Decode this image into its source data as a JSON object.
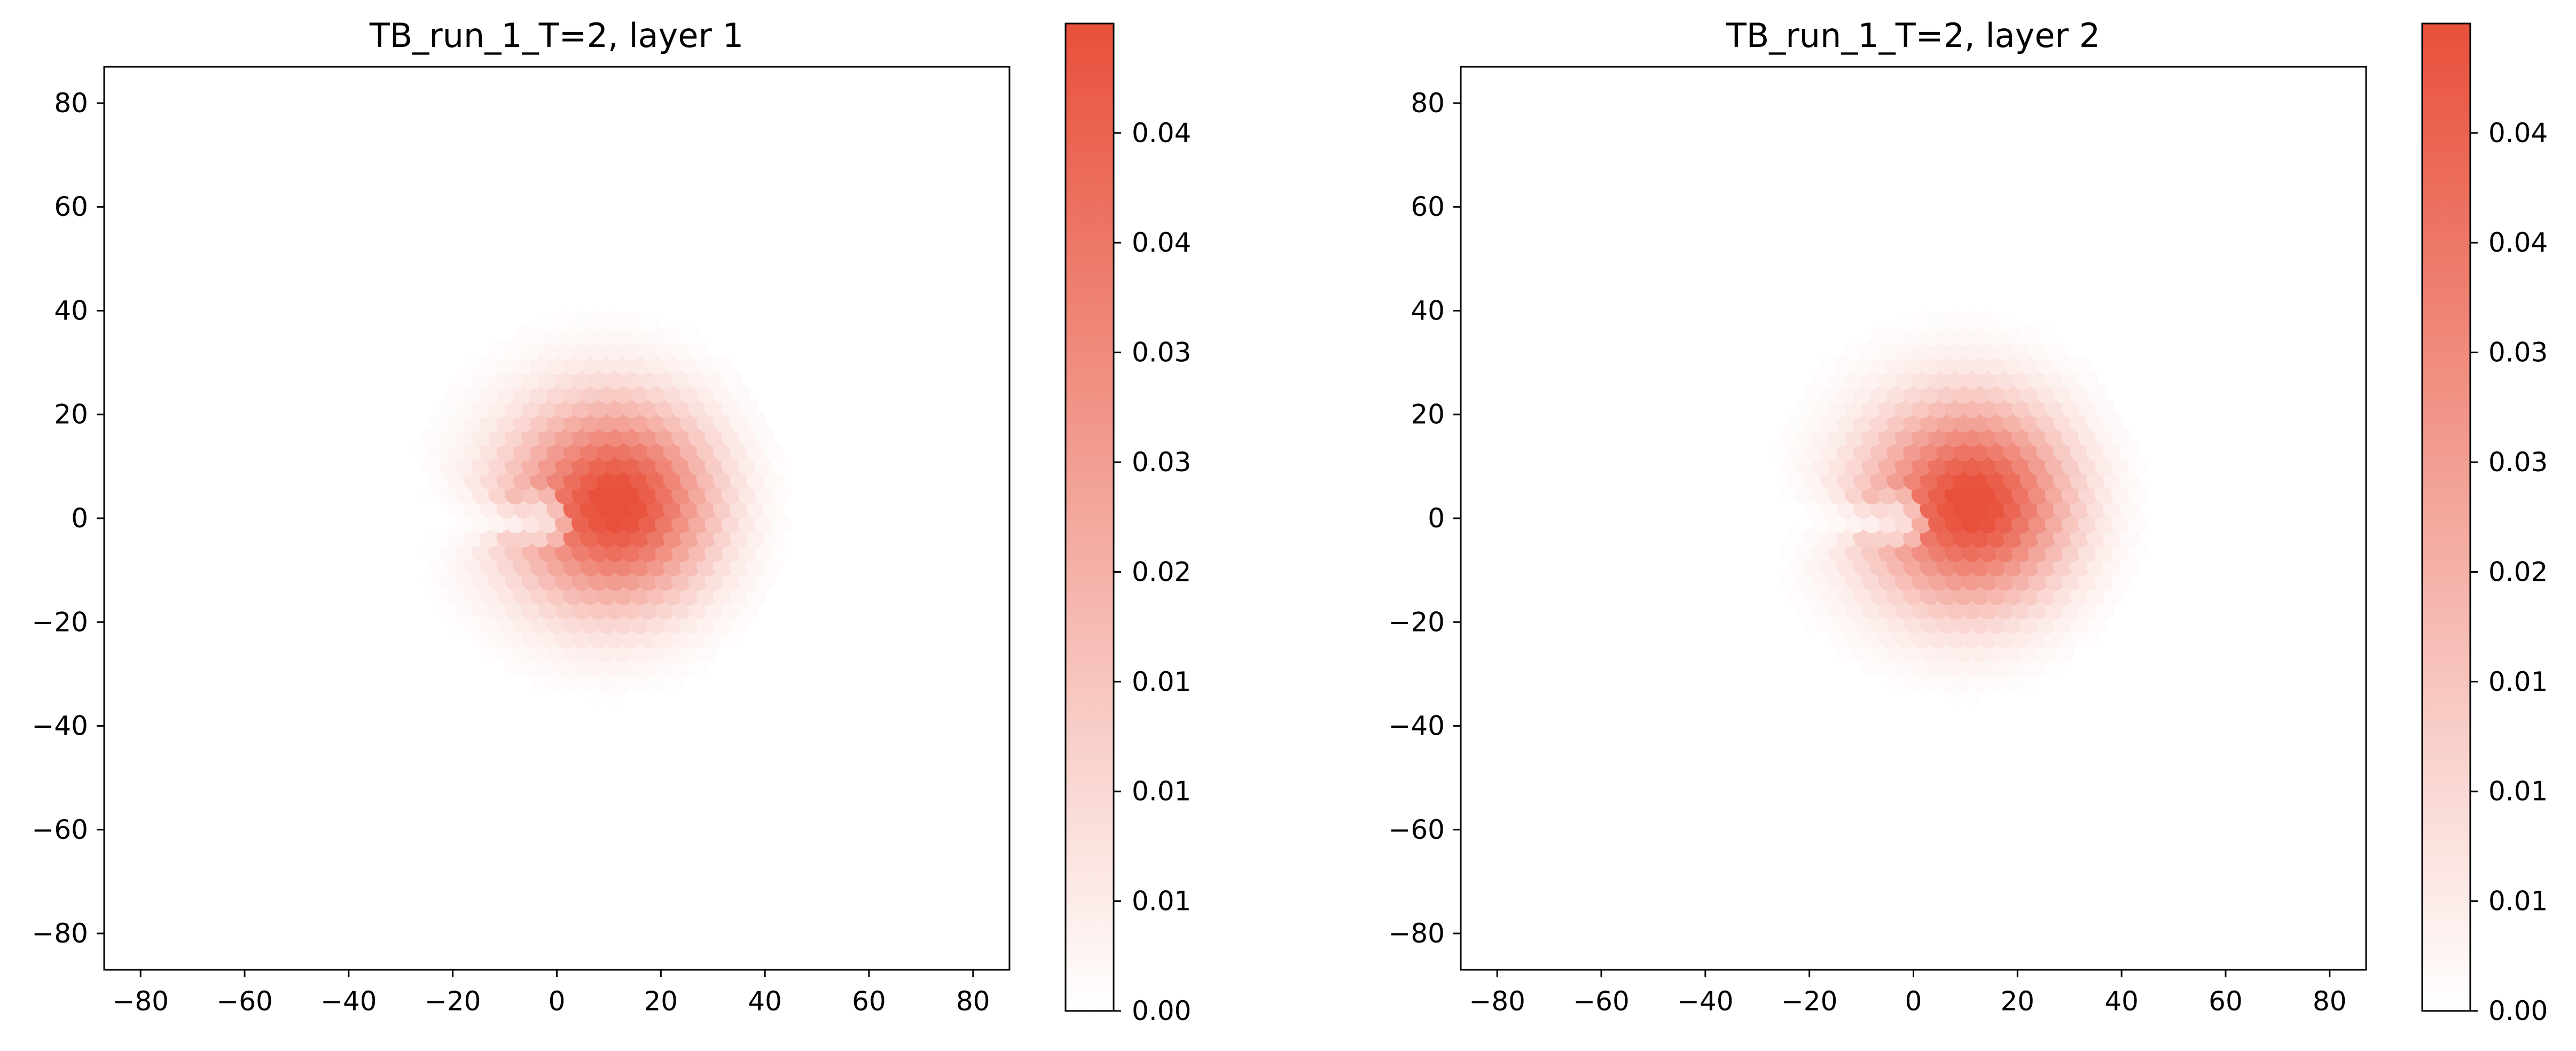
{
  "chart_data": [
    {
      "type": "heatmap",
      "title": "TB_run_1_T=2, layer 1",
      "xlabel": "",
      "ylabel": "",
      "xlim": [
        -87,
        87
      ],
      "ylim": [
        -87,
        87
      ],
      "x_ticks": [
        -80,
        -60,
        -40,
        -20,
        0,
        20,
        40,
        60,
        80
      ],
      "y_ticks": [
        80,
        60,
        40,
        20,
        0,
        -20,
        -40,
        -60,
        -80
      ],
      "grid": false,
      "colormap": {
        "low": "#ffffff",
        "high": "#e8503b"
      },
      "colorbar": {
        "range": [
          0.0,
          0.049
        ],
        "tick_labels": [
          "0.00",
          "0.01",
          "0.01",
          "0.01",
          "0.02",
          "0.03",
          "0.03",
          "0.04",
          "0.04"
        ]
      },
      "field": {
        "description": "crescent-shaped density blob, max near (12, 3), wedge gap toward -x near (-3, 0)",
        "peak_value": 0.049,
        "peak_x": 12,
        "peak_y": 3,
        "outer_radius": 42,
        "gap_center_x": -3,
        "gap_center_y": 0
      }
    },
    {
      "type": "heatmap",
      "title": "TB_run_1_T=2, layer 2",
      "xlabel": "",
      "ylabel": "",
      "xlim": [
        -87,
        87
      ],
      "ylim": [
        -87,
        87
      ],
      "x_ticks": [
        -80,
        -60,
        -40,
        -20,
        0,
        20,
        40,
        60,
        80
      ],
      "y_ticks": [
        80,
        60,
        40,
        20,
        0,
        -20,
        -40,
        -60,
        -80
      ],
      "grid": false,
      "colormap": {
        "low": "#ffffff",
        "high": "#e8503b"
      },
      "colorbar": {
        "range": [
          0.0,
          0.049
        ],
        "tick_labels": [
          "0.00",
          "0.01",
          "0.01",
          "0.01",
          "0.02",
          "0.03",
          "0.03",
          "0.04",
          "0.04"
        ]
      },
      "field": {
        "description": "crescent-shaped density blob, max near (12, 3), wedge gap toward -x near (-3, 0)",
        "peak_value": 0.049,
        "peak_x": 12,
        "peak_y": 3,
        "outer_radius": 42,
        "gap_center_x": -3,
        "gap_center_y": 0
      }
    }
  ]
}
